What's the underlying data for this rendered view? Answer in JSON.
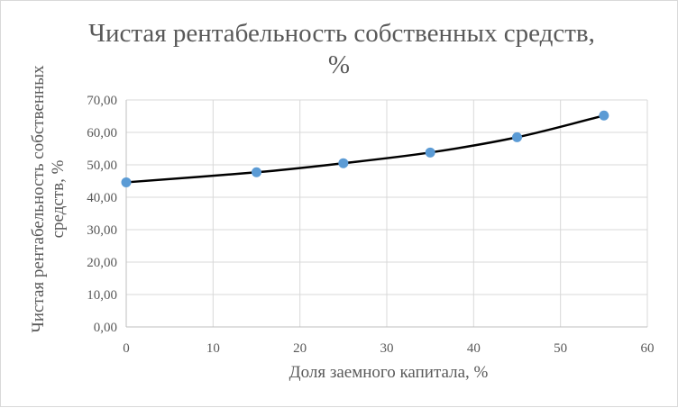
{
  "chart_data": {
    "type": "scatter",
    "title_lines": [
      "Чистая рентабельность собственных средств,",
      "%"
    ],
    "xlabel": "Доля заемного капитала, %",
    "ylabel_lines": [
      "Чистая рентабельность собственных",
      "средств, %"
    ],
    "xlim": [
      0,
      60
    ],
    "ylim": [
      0,
      70
    ],
    "x_ticks": [
      "0",
      "10",
      "20",
      "30",
      "40",
      "50",
      "60"
    ],
    "y_ticks": [
      "0,00",
      "10,00",
      "20,00",
      "30,00",
      "40,00",
      "50,00",
      "60,00",
      "70,00"
    ],
    "grid": true,
    "legend": "none",
    "series": [
      {
        "x": [
          0,
          15,
          25,
          35,
          45,
          55
        ],
        "y": [
          44.6,
          47.7,
          50.5,
          53.8,
          58.5,
          65.2
        ],
        "line": "smooth",
        "line_color": "#000000",
        "marker_color": "#5b9bd5"
      }
    ]
  }
}
